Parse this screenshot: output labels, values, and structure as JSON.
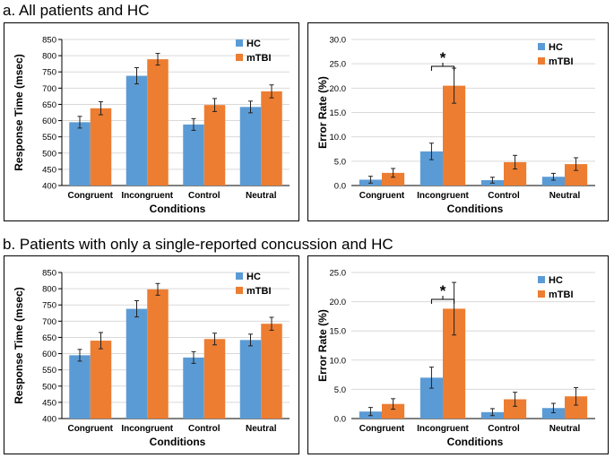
{
  "panels": {
    "a": {
      "title": "a. All patients and HC"
    },
    "b": {
      "title": "b. Patients with only a single-reported concussion and HC"
    }
  },
  "colors": {
    "hc": "#5b9bd5",
    "mtbi": "#ed7d31",
    "grid": "#d9d9d9",
    "axis": "#000000"
  },
  "chart_data": [
    {
      "id": "a-rt",
      "type": "bar",
      "title": "",
      "xlabel": "Conditions",
      "ylabel": "Response Time (msec)",
      "categories": [
        "Congruent",
        "Incongruent",
        "Control",
        "Neutral"
      ],
      "ylim": [
        400,
        850
      ],
      "yticks": [
        "400",
        "450",
        "500",
        "550",
        "600",
        "650",
        "700",
        "750",
        "800",
        "850"
      ],
      "legend_position": "top-right",
      "series": [
        {
          "name": "HC",
          "values": [
            595,
            738,
            588,
            642
          ],
          "errors": [
            18,
            25,
            18,
            18
          ]
        },
        {
          "name": "mTBI",
          "values": [
            638,
            789,
            648,
            690
          ],
          "errors": [
            20,
            18,
            20,
            20
          ]
        }
      ],
      "annotations": []
    },
    {
      "id": "a-err",
      "type": "bar",
      "title": "",
      "xlabel": "Conditions",
      "ylabel": "Error Rate (%)",
      "categories": [
        "Congruent",
        "Incongruent",
        "Control",
        "Neutral"
      ],
      "ylim": [
        0,
        30
      ],
      "yticks": [
        "0.0",
        "5.0",
        "10.0",
        "15.0",
        "20.0",
        "25.0",
        "30.0"
      ],
      "legend_position": "top-right",
      "series": [
        {
          "name": "HC",
          "values": [
            1.2,
            7.0,
            1.1,
            1.8
          ],
          "errors": [
            0.7,
            1.7,
            0.6,
            0.7
          ]
        },
        {
          "name": "mTBI",
          "values": [
            2.6,
            20.5,
            4.8,
            4.4
          ],
          "errors": [
            0.9,
            3.6,
            1.4,
            1.3
          ]
        }
      ],
      "annotations": [
        {
          "category": "Incongruent",
          "text": "*"
        }
      ]
    },
    {
      "id": "b-rt",
      "type": "bar",
      "title": "",
      "xlabel": "Conditions",
      "ylabel": "Response Time (msec)",
      "categories": [
        "Congruent",
        "Incongruent",
        "Control",
        "Neutral"
      ],
      "ylim": [
        400,
        850
      ],
      "yticks": [
        "400",
        "450",
        "500",
        "550",
        "600",
        "650",
        "700",
        "750",
        "800",
        "850"
      ],
      "legend_position": "top-right",
      "series": [
        {
          "name": "HC",
          "values": [
            595,
            738,
            588,
            642
          ],
          "errors": [
            18,
            25,
            18,
            18
          ]
        },
        {
          "name": "mTBI",
          "values": [
            640,
            798,
            645,
            692
          ],
          "errors": [
            25,
            18,
            18,
            20
          ]
        }
      ],
      "annotations": []
    },
    {
      "id": "b-err",
      "type": "bar",
      "title": "",
      "xlabel": "Conditions",
      "ylabel": "Error Rate (%)",
      "categories": [
        "Congruent",
        "Incongruent",
        "Control",
        "Neutral"
      ],
      "ylim": [
        0,
        25
      ],
      "yticks": [
        "0.0",
        "5.0",
        "10.0",
        "15.0",
        "20.0",
        "25.0"
      ],
      "legend_position": "top-right",
      "series": [
        {
          "name": "HC",
          "values": [
            1.2,
            7.0,
            1.1,
            1.8
          ],
          "errors": [
            0.7,
            1.8,
            0.6,
            0.8
          ]
        },
        {
          "name": "mTBI",
          "values": [
            2.5,
            18.8,
            3.3,
            3.8
          ],
          "errors": [
            0.9,
            4.5,
            1.2,
            1.5
          ]
        }
      ],
      "annotations": [
        {
          "category": "Incongruent",
          "text": "*"
        }
      ]
    }
  ]
}
